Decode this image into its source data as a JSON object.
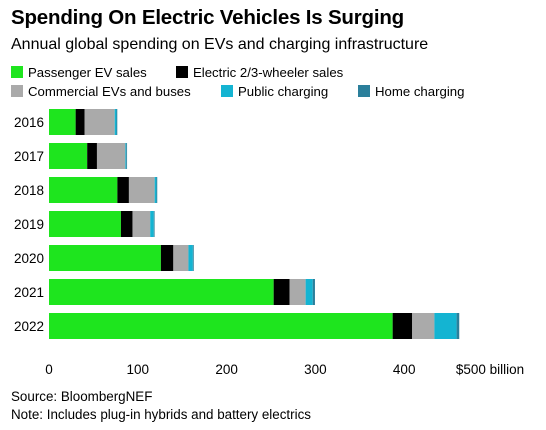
{
  "header": {
    "title": "Spending On Electric Vehicles Is Surging",
    "subtitle": "Annual global spending on EVs and charging infrastructure"
  },
  "chart_data": {
    "type": "bar",
    "orientation": "horizontal",
    "stacked": true,
    "categories": [
      "2016",
      "2017",
      "2018",
      "2019",
      "2020",
      "2021",
      "2022"
    ],
    "series": [
      {
        "name": "Passenger EV sales",
        "color": "#1ee51e",
        "values": [
          30,
          43,
          77,
          81,
          126,
          253,
          387
        ]
      },
      {
        "name": "Electric 2/3-wheeler sales",
        "color": "#000000",
        "values": [
          10,
          11,
          13,
          13,
          14,
          18,
          22
        ]
      },
      {
        "name": "Commercial EVs and buses",
        "color": "#aaaaaa",
        "values": [
          34,
          32,
          29,
          20,
          17,
          18,
          25
        ]
      },
      {
        "name": "Public charging",
        "color": "#14b4d2",
        "values": [
          2,
          1,
          2,
          4,
          5,
          8,
          25
        ]
      },
      {
        "name": "Home charging",
        "color": "#2b7f9b",
        "values": [
          0.5,
          0.5,
          0.5,
          0.5,
          1,
          2.5,
          3
        ]
      }
    ],
    "x_ticks": [
      "0",
      "100",
      "200",
      "300",
      "400",
      "$500 billion"
    ],
    "xlim": [
      0,
      500
    ],
    "grid": false,
    "legend_position": "top"
  },
  "footer": {
    "source": "Source: BloombergNEF",
    "note": "Note: Includes plug-in hybrids and battery electrics"
  }
}
